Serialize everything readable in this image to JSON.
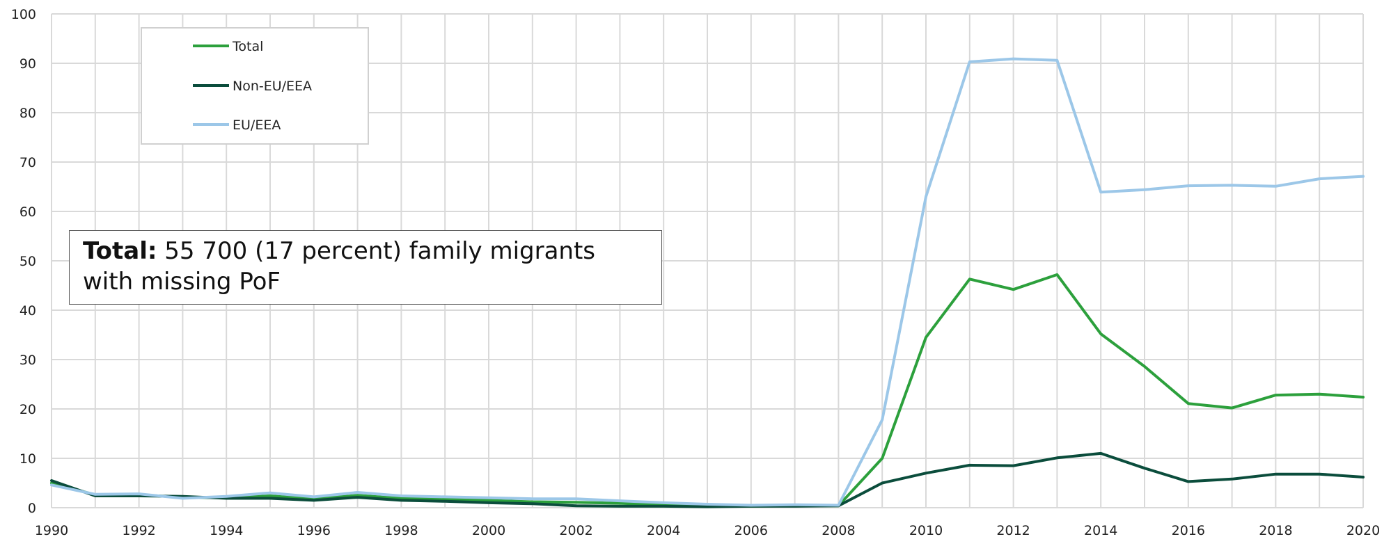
{
  "chart_data": {
    "type": "line",
    "title": "",
    "xlabel": "",
    "ylabel": "",
    "ylim": [
      0,
      100
    ],
    "xlim": [
      1990,
      2020
    ],
    "grid": true,
    "legend_position": "top-left",
    "x": [
      1990,
      1991,
      1992,
      1993,
      1994,
      1995,
      1996,
      1997,
      1998,
      1999,
      2000,
      2001,
      2002,
      2003,
      2004,
      2005,
      2006,
      2007,
      2008,
      2009,
      2010,
      2011,
      2012,
      2013,
      2014,
      2015,
      2016,
      2017,
      2018,
      2019,
      2020
    ],
    "x_tick_labels": [
      "1990",
      "1992",
      "1994",
      "1996",
      "1998",
      "2000",
      "2002",
      "2004",
      "2006",
      "2008",
      "2010",
      "2012",
      "2014",
      "2016",
      "2018",
      "2020"
    ],
    "y_tick_labels": [
      "0",
      "10",
      "20",
      "30",
      "40",
      "50",
      "60",
      "70",
      "80",
      "90",
      "100"
    ],
    "series": [
      {
        "name": "Total",
        "color": "#2ca03c",
        "values": [
          5.0,
          2.6,
          2.6,
          2.1,
          2.0,
          2.4,
          1.8,
          2.5,
          1.9,
          1.7,
          1.5,
          1.2,
          1.1,
          0.9,
          0.6,
          0.4,
          0.3,
          0.4,
          0.4,
          10.0,
          34.5,
          46.3,
          44.2,
          47.2,
          35.2,
          28.6,
          21.1,
          20.2,
          22.8,
          23.0,
          22.4
        ]
      },
      {
        "name": "Non-EU/EEA",
        "color": "#0b4d3c",
        "values": [
          5.5,
          2.4,
          2.4,
          2.3,
          1.9,
          1.9,
          1.5,
          2.1,
          1.5,
          1.3,
          1.0,
          0.8,
          0.4,
          0.3,
          0.3,
          0.2,
          0.3,
          0.3,
          0.4,
          5.0,
          7.0,
          8.6,
          8.5,
          10.1,
          11.0,
          8.0,
          5.3,
          5.8,
          6.8,
          6.8,
          6.2
        ]
      },
      {
        "name": "EU/EEA",
        "color": "#9cc7e8",
        "values": [
          4.6,
          2.7,
          2.8,
          1.9,
          2.3,
          3.0,
          2.2,
          3.1,
          2.4,
          2.2,
          2.0,
          1.8,
          1.8,
          1.4,
          1.0,
          0.7,
          0.5,
          0.6,
          0.5,
          17.8,
          63.0,
          90.3,
          90.9,
          90.6,
          63.9,
          64.4,
          65.2,
          65.3,
          65.1,
          66.6,
          67.1
        ]
      }
    ],
    "annotation": {
      "bold": "Total:",
      "text": " 55 700 (17 percent) family migrants with missing PoF"
    }
  }
}
